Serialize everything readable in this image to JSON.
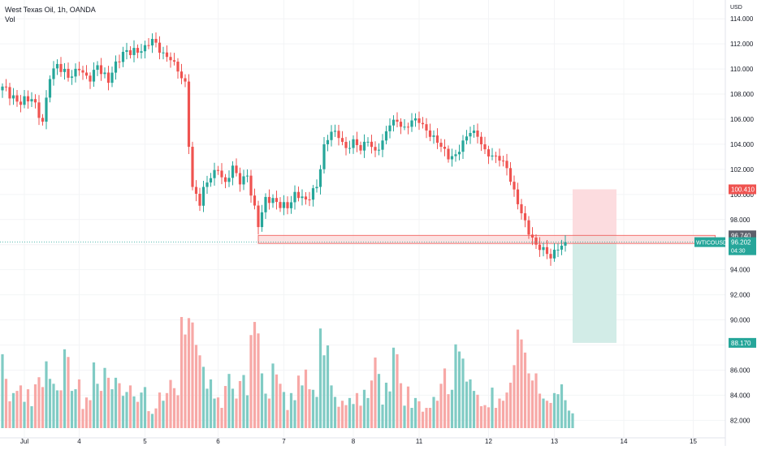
{
  "header": {
    "symbol_title": "West Texas Oil, 1h, OANDA",
    "volume_label": "Vol"
  },
  "currency": "USD",
  "colors": {
    "up": "#26a69a",
    "down": "#ef5350",
    "vol_up": "#80cbc4",
    "vol_down": "#f7a8a6",
    "zone_fill": "#fbd5d5",
    "zone_stroke": "#ef5350",
    "stop_fill": "#fcdcdf",
    "target_fill": "#d2ece7",
    "price_line": "#26a69a",
    "grid": "#f3f4f6",
    "axis_text": "#131722"
  },
  "chart_data": {
    "type": "candlestick",
    "title": "West Texas Oil, 1h, OANDA",
    "ylim": [
      80.6,
      115.5
    ],
    "volume_max": 20,
    "x_ticks": [
      {
        "label": "Jul",
        "i": 6
      },
      {
        "label": "4",
        "i": 21
      },
      {
        "label": "5",
        "i": 39
      },
      {
        "label": "6",
        "i": 59
      },
      {
        "label": "7",
        "i": 77
      },
      {
        "label": "8",
        "i": 96
      },
      {
        "label": "11",
        "i": 114
      },
      {
        "label": "12",
        "i": 133
      },
      {
        "label": "13",
        "i": 151
      },
      {
        "label": "14",
        "i": 170
      },
      {
        "label": "15",
        "i": 189
      }
    ],
    "y_ticks": [
      {
        "label": "114.000",
        "value": 114
      },
      {
        "label": "112.000",
        "value": 112
      },
      {
        "label": "110.000",
        "value": 110
      },
      {
        "label": "108.000",
        "value": 108
      },
      {
        "label": "106.000",
        "value": 106
      },
      {
        "label": "104.000",
        "value": 104
      },
      {
        "label": "102.000",
        "value": 102
      },
      {
        "label": "100.000",
        "value": 100
      },
      {
        "label": "98.000",
        "value": 98
      },
      {
        "label": "96.000",
        "value": 96
      },
      {
        "label": "94.000",
        "value": 94
      },
      {
        "label": "92.000",
        "value": 92
      },
      {
        "label": "90.000",
        "value": 90
      },
      {
        "label": "88.000",
        "value": 88
      },
      {
        "label": "86.000",
        "value": 86
      },
      {
        "label": "84.000",
        "value": 84
      },
      {
        "label": "82.000",
        "value": 82
      }
    ],
    "support_zone": {
      "from_i": 70,
      "to_i": 195,
      "top": 96.74,
      "bottom": 96.1
    },
    "stop_zone": {
      "from_i": 156,
      "to_i": 168,
      "top": 100.41,
      "bottom": 96.74
    },
    "target_zone": {
      "from_i": 156,
      "to_i": 168,
      "top": 96.74,
      "bottom": 88.17
    },
    "price_labels": [
      {
        "text": "100.410",
        "value": 100.41,
        "bg": "#ef5350"
      },
      {
        "text": "96.740",
        "value": 96.74,
        "bg": "#5d606b"
      },
      {
        "text": "88.170",
        "value": 88.17,
        "bg": "#26a69a"
      }
    ],
    "last_price": {
      "symbol": "WTICOUSD",
      "price": "96.202",
      "countdown": "04:30",
      "value": 96.2
    },
    "anchors": [
      [
        0,
        108.6
      ],
      [
        4,
        107.4
      ],
      [
        8,
        107.6
      ],
      [
        11,
        105.8
      ],
      [
        13,
        109.2
      ],
      [
        15,
        110.4
      ],
      [
        18,
        109.3
      ],
      [
        21,
        109.9
      ],
      [
        24,
        109.0
      ],
      [
        26,
        110.3
      ],
      [
        29,
        108.9
      ],
      [
        31,
        110.6
      ],
      [
        34,
        111.5
      ],
      [
        37,
        111.3
      ],
      [
        39,
        111.9
      ],
      [
        41,
        112.4
      ],
      [
        43,
        111.3
      ],
      [
        46,
        110.7
      ],
      [
        48,
        109.8
      ],
      [
        50,
        109.0
      ],
      [
        51,
        103.8
      ],
      [
        52,
        100.6
      ],
      [
        54,
        99.1
      ],
      [
        55,
        100.6
      ],
      [
        57,
        101.3
      ],
      [
        59,
        101.9
      ],
      [
        61,
        101.0
      ],
      [
        63,
        102.3
      ],
      [
        65,
        100.8
      ],
      [
        67,
        101.5
      ],
      [
        70,
        97.4
      ],
      [
        72,
        99.8
      ],
      [
        75,
        99.4
      ],
      [
        78,
        98.9
      ],
      [
        80,
        100.2
      ],
      [
        83,
        99.6
      ],
      [
        86,
        100.6
      ],
      [
        88,
        104.0
      ],
      [
        90,
        105.0
      ],
      [
        92,
        104.5
      ],
      [
        94,
        103.7
      ],
      [
        96,
        104.4
      ],
      [
        98,
        103.5
      ],
      [
        100,
        104.2
      ],
      [
        102,
        103.5
      ],
      [
        104,
        104.3
      ],
      [
        106,
        105.5
      ],
      [
        108,
        105.8
      ],
      [
        110,
        105.4
      ],
      [
        112,
        105.9
      ],
      [
        114,
        105.7
      ],
      [
        116,
        105.1
      ],
      [
        118,
        104.7
      ],
      [
        120,
        103.8
      ],
      [
        122,
        102.8
      ],
      [
        124,
        103.2
      ],
      [
        126,
        104.3
      ],
      [
        128,
        104.9
      ],
      [
        130,
        104.6
      ],
      [
        132,
        103.6
      ],
      [
        134,
        103.1
      ],
      [
        136,
        102.7
      ],
      [
        138,
        102.1
      ],
      [
        140,
        100.4
      ],
      [
        142,
        98.5
      ],
      [
        144,
        96.8
      ],
      [
        146,
        96.0
      ],
      [
        148,
        95.8
      ],
      [
        150,
        94.9
      ],
      [
        152,
        95.6
      ],
      [
        154,
        96.2
      ]
    ],
    "volumes": [
      13.5,
      9.0,
      4.9,
      6.4,
      6.8,
      7.8,
      4.8,
      7.1,
      4.0,
      8.0,
      9.3,
      7.5,
      12.2,
      9.0,
      8.1,
      6.9,
      6.9,
      14.4,
      13.0,
      6.8,
      7.1,
      8.9,
      3.5,
      5.6,
      5.1,
      12.0,
      8.1,
      6.8,
      11.0,
      9.2,
      7.1,
      9.2,
      8.2,
      5.9,
      6.6,
      7.8,
      5.8,
      4.8,
      6.5,
      7.5,
      3.1,
      2.6,
      3.6,
      6.5,
      5.0,
      6.4,
      8.8,
      7.3,
      6.0,
      20.3,
      17.1,
      20.1,
      19.3,
      15.2,
      13.3,
      11.2,
      7.2,
      8.9,
      5.4,
      5.6,
      3.7,
      7.7,
      9.9,
      7.2,
      5.4,
      8.6,
      9.7,
      6.0,
      17.0,
      19.4,
      17.3,
      10.0,
      6.3,
      5.4,
      11.8,
      9.8,
      8.1,
      6.6,
      3.3,
      6.4,
      5.1,
      9.6,
      7.8,
      10.7,
      7.1,
      7.0,
      5.7,
      18.2,
      13.3,
      15.1,
      7.8,
      5.7,
      3.9,
      5.0,
      4.2,
      5.5,
      4.4,
      6.4,
      4.1,
      7.0,
      5.5,
      8.7,
      12.9,
      9.9,
      4.3,
      8.3,
      6.7,
      14.7,
      13.5,
      8.2,
      4.1,
      7.6,
      3.7,
      5.5,
      4.9,
      3.0,
      3.7,
      3.7,
      5.7,
      5.0,
      8.1,
      10.9,
      6.2,
      7.0,
      15.3,
      14.0,
      12.7,
      8.5,
      8.9,
      6.8,
      6.1,
      4.0,
      4.2,
      3.8,
      7.4,
      3.7,
      5.4,
      5.0,
      6.5,
      8.3,
      11.5,
      18.0,
      16.2,
      13.8,
      10.0,
      8.7,
      10.0,
      6.3,
      5.4,
      5.0,
      4.6,
      6.4,
      6.2,
      8.0,
      5.1,
      3.2,
      2.7
    ]
  }
}
